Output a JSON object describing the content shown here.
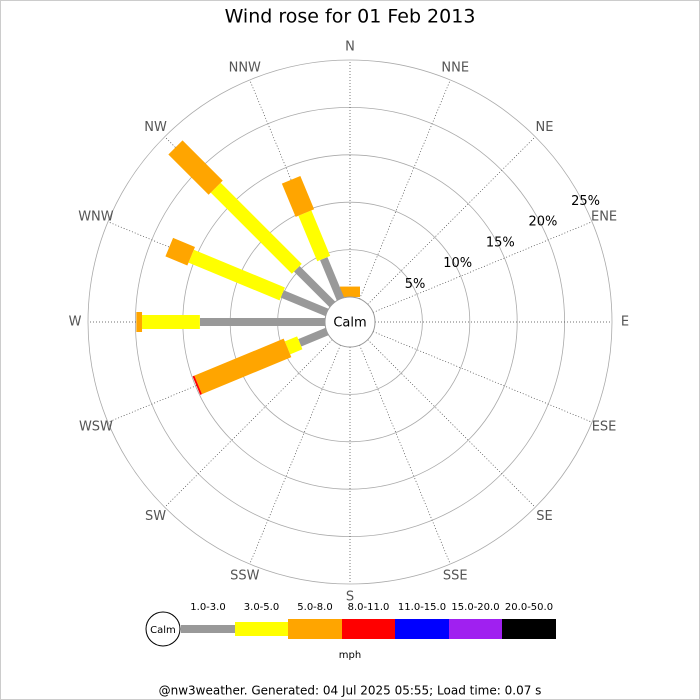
{
  "chart_data": {
    "type": "windrose",
    "title": "Wind rose for 01 Feb 2013",
    "categories": [
      "N",
      "NNE",
      "NE",
      "ENE",
      "E",
      "ESE",
      "SE",
      "SSE",
      "S",
      "SSW",
      "SW",
      "WSW",
      "W",
      "WNW",
      "NW",
      "NNW"
    ],
    "center_label": "Calm",
    "rlim": [
      0,
      25
    ],
    "rticks": [
      {
        "value": 5,
        "label": "5%"
      },
      {
        "value": 10,
        "label": "10%"
      },
      {
        "value": 15,
        "label": "15%"
      },
      {
        "value": 20,
        "label": "20%"
      },
      {
        "value": 25,
        "label": "25%"
      }
    ],
    "series": [
      {
        "name": "1.0-3.0",
        "color": "#999999",
        "values": [
          0,
          0,
          0,
          0,
          0,
          0,
          0,
          0,
          0,
          0,
          0,
          3.1,
          13.2,
          5.1,
          5.3,
          4.6
        ]
      },
      {
        "name": "3.0-5.0",
        "color": "#ffff00",
        "values": [
          0,
          0,
          0,
          0,
          0,
          0,
          0,
          0,
          0,
          0,
          0,
          1.4,
          6.1,
          10.4,
          12.1,
          5.2
        ]
      },
      {
        "name": "5.0-8.0",
        "color": "#ffa500",
        "values": [
          1.1,
          0,
          0,
          0,
          0,
          0,
          0,
          0,
          0,
          0,
          0,
          10.2,
          0.6,
          2.5,
          6.0,
          3.8
        ]
      },
      {
        "name": "8.0-11.0",
        "color": "#ff0000",
        "values": [
          0,
          0,
          0,
          0,
          0,
          0,
          0,
          0,
          0,
          0,
          0,
          0.2,
          0,
          0,
          0,
          0
        ]
      },
      {
        "name": "11.0-15.0",
        "color": "#0000ff",
        "values": [
          0,
          0,
          0,
          0,
          0,
          0,
          0,
          0,
          0,
          0,
          0,
          0,
          0,
          0,
          0,
          0
        ]
      },
      {
        "name": "15.0-20.0",
        "color": "#a020f0",
        "values": [
          0,
          0,
          0,
          0,
          0,
          0,
          0,
          0,
          0,
          0,
          0,
          0,
          0,
          0,
          0,
          0
        ]
      },
      {
        "name": "20.0-50.0",
        "color": "#000000",
        "values": [
          0,
          0,
          0,
          0,
          0,
          0,
          0,
          0,
          0,
          0,
          0,
          0,
          0,
          0,
          0,
          0
        ]
      }
    ],
    "legend_unit": "mph",
    "footer": "@nw3weather. Generated: 04 Jul 2025 05:55; Load time: 0.07 s"
  }
}
